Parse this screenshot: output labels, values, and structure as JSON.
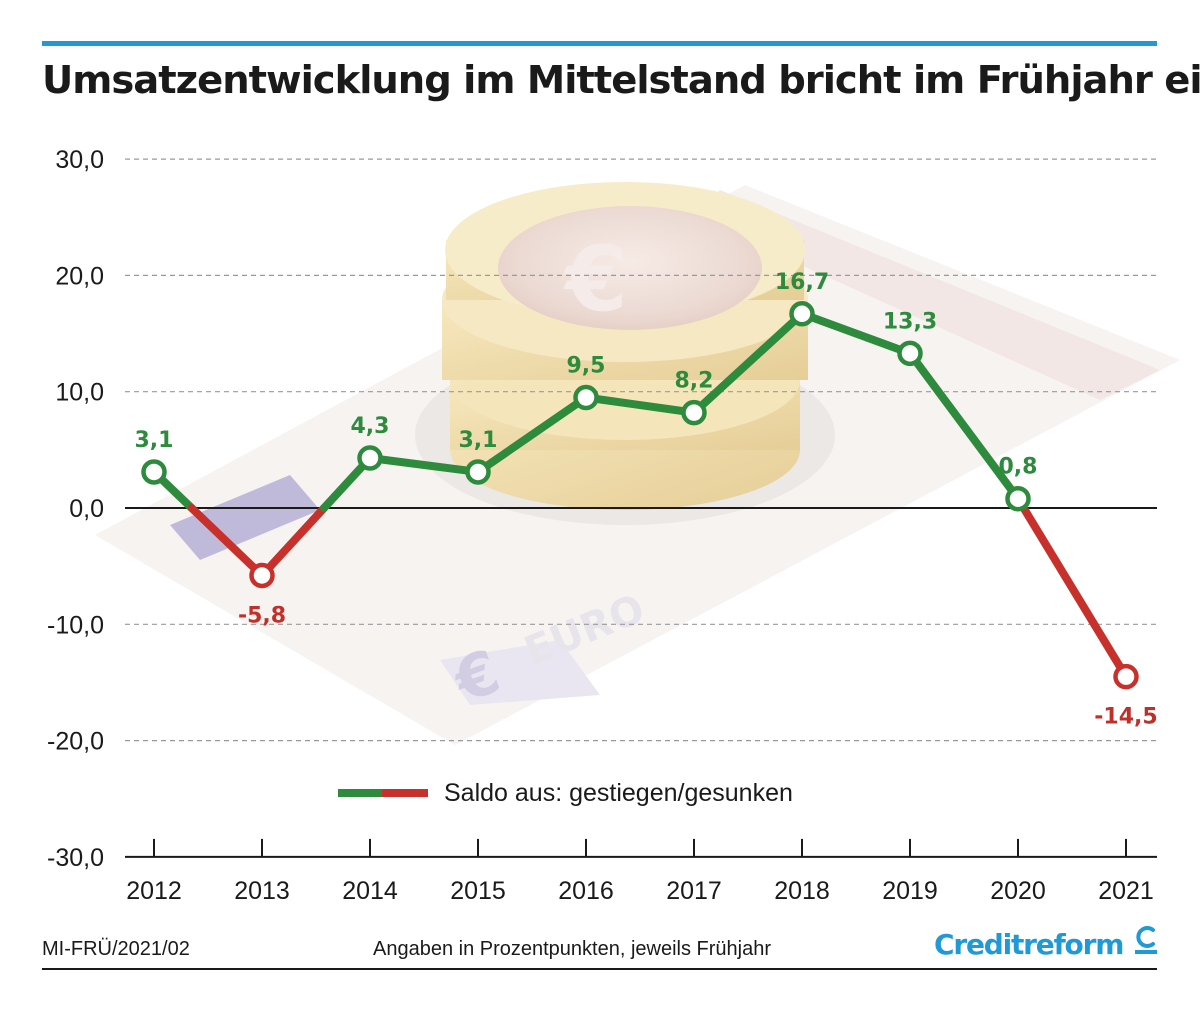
{
  "header": {
    "title": "Umsatzentwicklung im Mittelstand bricht im Frühjahr ein"
  },
  "chart_data": {
    "type": "line",
    "title": "Umsatzentwicklung im Mittelstand bricht im Frühjahr ein",
    "x": [
      "2012",
      "2013",
      "2014",
      "2015",
      "2016",
      "2017",
      "2018",
      "2019",
      "2020",
      "2021"
    ],
    "series": [
      {
        "name": "Saldo aus: gestiegen/gesunken",
        "values": [
          3.1,
          -5.8,
          4.3,
          3.1,
          9.5,
          8.2,
          16.7,
          13.3,
          0.8,
          -14.5
        ],
        "labels": [
          "3,1",
          "-5,8",
          "4,3",
          "3,1",
          "9,5",
          "8,2",
          "16,7",
          "13,3",
          "0,8",
          "-14,5"
        ]
      }
    ],
    "ylim": [
      -30,
      30
    ],
    "yticks": [
      30,
      20,
      10,
      0,
      -10,
      -20,
      -30
    ],
    "ytick_labels": [
      "30,0",
      "20,0",
      "10,0",
      "0,0",
      "-10,0",
      "-20,0",
      "-30,0"
    ],
    "grid": true,
    "legend": "bottom-center",
    "colors": {
      "positive": "#2e8b3e",
      "negative": "#c8312b",
      "positive_label": "#2e8b3e",
      "negative_label": "#c0302a"
    }
  },
  "legend": {
    "label": "Saldo aus: gestiegen/gesunken"
  },
  "footer": {
    "code": "MI-FRÜ/2021/02",
    "note": "Angaben in Prozentpunkten, jeweils Frühjahr",
    "brand": "Creditreform",
    "brand_color": "#1f9ad6"
  }
}
